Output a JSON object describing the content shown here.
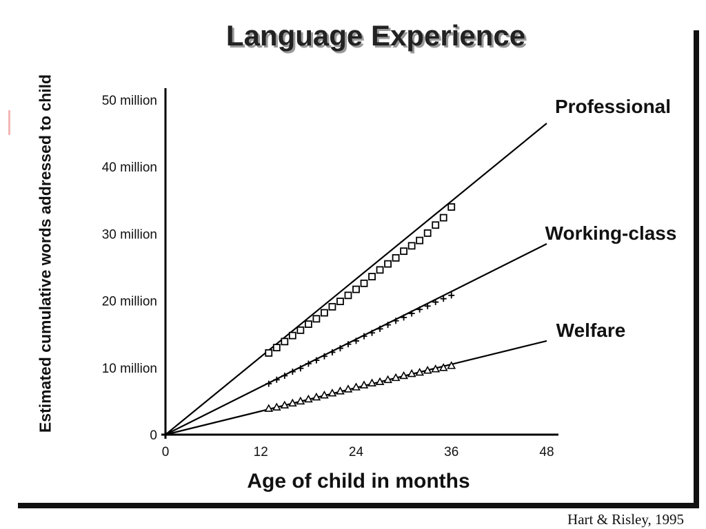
{
  "chart_data": {
    "type": "line",
    "title": "Language Experience",
    "xlabel": "Age of child in months",
    "ylabel": "Estimated cumulative words addressed to child",
    "xlim": [
      0,
      48
    ],
    "ylim": [
      0,
      50
    ],
    "x_ticks": [
      {
        "value": 0,
        "label": "0"
      },
      {
        "value": 12,
        "label": "12"
      },
      {
        "value": 24,
        "label": "24"
      },
      {
        "value": 36,
        "label": "36"
      },
      {
        "value": 48,
        "label": "48"
      }
    ],
    "y_ticks": [
      {
        "value": 0,
        "label": "0"
      },
      {
        "value": 10,
        "label": "10 million"
      },
      {
        "value": 20,
        "label": "20 million"
      },
      {
        "value": 30,
        "label": "30 million"
      },
      {
        "value": 40,
        "label": "40 million"
      },
      {
        "value": 50,
        "label": "50 million"
      }
    ],
    "grid": false,
    "series": [
      {
        "name": "Professional",
        "marker": "square",
        "trend": {
          "x": [
            0,
            48
          ],
          "y": [
            0,
            46.5
          ]
        },
        "x": [
          13,
          14,
          15,
          16,
          17,
          18,
          19,
          20,
          21,
          22,
          23,
          24,
          25,
          26,
          27,
          28,
          29,
          30,
          31,
          32,
          33,
          34,
          35,
          36
        ],
        "y": [
          12.2,
          13.0,
          13.9,
          14.8,
          15.6,
          16.5,
          17.3,
          18.2,
          19.1,
          19.9,
          20.8,
          21.7,
          22.6,
          23.6,
          24.6,
          25.5,
          26.4,
          27.4,
          28.2,
          29.0,
          30.1,
          31.3,
          32.4,
          34.0
        ]
      },
      {
        "name": "Working-class",
        "marker": "plus",
        "trend": {
          "x": [
            0,
            48
          ],
          "y": [
            0,
            28.5
          ]
        },
        "x": [
          13,
          14,
          15,
          16,
          17,
          18,
          19,
          20,
          21,
          22,
          23,
          24,
          25,
          26,
          27,
          28,
          29,
          30,
          31,
          32,
          33,
          34,
          35,
          36
        ],
        "y": [
          7.6,
          8.2,
          8.8,
          9.4,
          9.9,
          10.6,
          11.1,
          11.7,
          12.3,
          12.9,
          13.5,
          14.0,
          14.7,
          15.2,
          15.8,
          16.4,
          17.0,
          17.5,
          18.1,
          18.7,
          19.2,
          19.8,
          20.3,
          20.8
        ]
      },
      {
        "name": "Welfare",
        "marker": "triangle",
        "trend": {
          "x": [
            0,
            48
          ],
          "y": [
            0,
            14
          ]
        },
        "x": [
          13,
          14,
          15,
          16,
          17,
          18,
          19,
          20,
          21,
          22,
          23,
          24,
          25,
          26,
          27,
          28,
          29,
          30,
          31,
          32,
          33,
          34,
          35,
          36
        ],
        "y": [
          3.9,
          4.1,
          4.4,
          4.7,
          5.0,
          5.3,
          5.6,
          5.9,
          6.2,
          6.5,
          6.8,
          7.1,
          7.4,
          7.7,
          7.9,
          8.2,
          8.5,
          8.8,
          9.1,
          9.3,
          9.6,
          9.8,
          10.0,
          10.3
        ]
      }
    ]
  },
  "source_note": "Hart & Risley, 1995"
}
